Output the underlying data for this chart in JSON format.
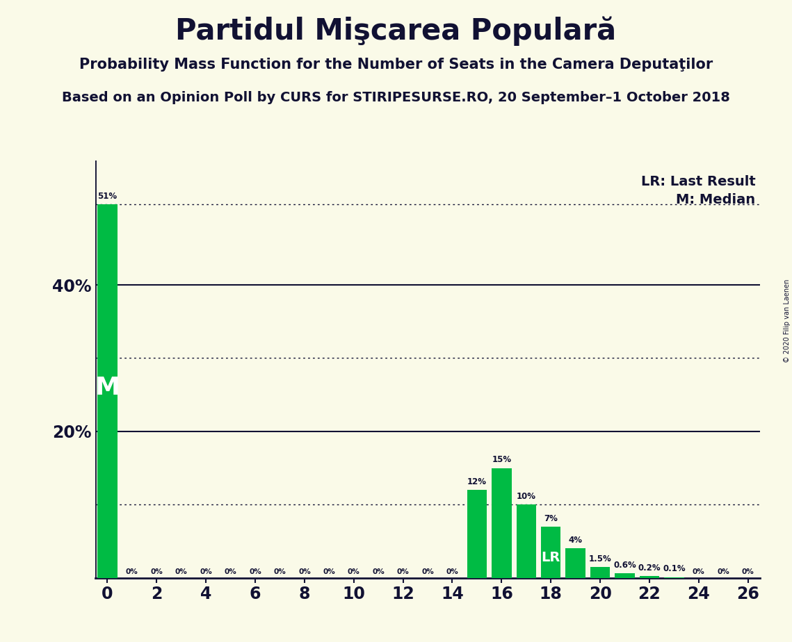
{
  "title": "Partidul Mişcarea Populară",
  "subtitle1": "Probability Mass Function for the Number of Seats in the Camera Deputaţilor",
  "subtitle2": "Based on an Opinion Poll by CURS for STIRIPESURSE.RO, 20 September–1 October 2018",
  "copyright": "© 2020 Filip van Laenen",
  "seats": [
    0,
    1,
    2,
    3,
    4,
    5,
    6,
    7,
    8,
    9,
    10,
    11,
    12,
    13,
    14,
    15,
    16,
    17,
    18,
    19,
    20,
    21,
    22,
    23,
    24,
    25,
    26
  ],
  "probabilities": [
    51.0,
    0.0,
    0.0,
    0.0,
    0.0,
    0.0,
    0.0,
    0.0,
    0.0,
    0.0,
    0.0,
    0.0,
    0.0,
    0.0,
    0.0,
    12.0,
    15.0,
    10.0,
    7.0,
    4.0,
    1.5,
    0.6,
    0.2,
    0.1,
    0.0,
    0.0,
    0.0
  ],
  "bar_color": "#00BB44",
  "background_color": "#FAFAE8",
  "text_color": "#111133",
  "median_seat": 0,
  "lr_seat": 18,
  "legend_lr": "LR: Last Result",
  "legend_m": "M: Median",
  "solid_lines": [
    20.0,
    40.0
  ],
  "dotted_lines": [
    10.0,
    30.0,
    51.0
  ],
  "ylim_max": 57,
  "xlim": [
    -0.5,
    26.5
  ],
  "xticks": [
    0,
    2,
    4,
    6,
    8,
    10,
    12,
    14,
    16,
    18,
    20,
    22,
    24,
    26
  ],
  "ytick_positions": [
    20.0,
    40.0
  ],
  "ytick_labels": [
    "20%",
    "40%"
  ]
}
